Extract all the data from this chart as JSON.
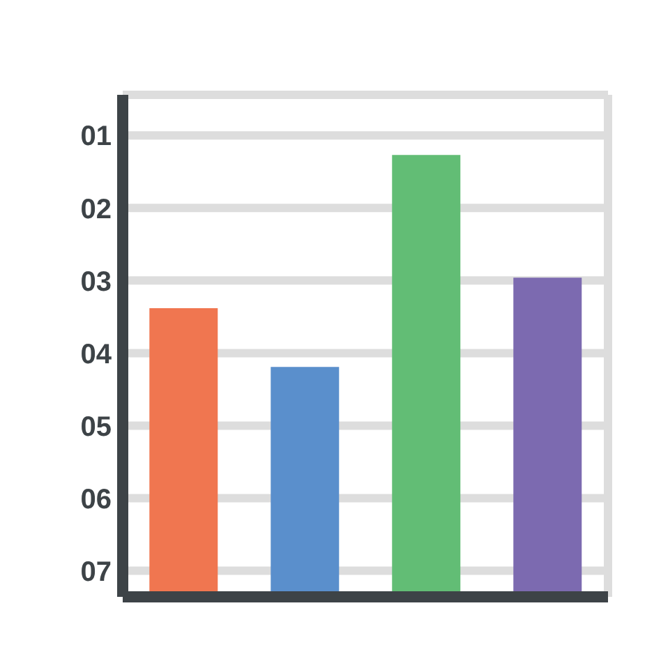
{
  "chart_data": {
    "type": "bar",
    "categories": [
      null,
      null,
      null,
      null
    ],
    "base": [
      7.36,
      7.36,
      7.36,
      7.36
    ],
    "values": [
      -3.98,
      -3.17,
      -6.09,
      -4.4
    ],
    "colors": [
      "#f07650",
      "#5a8fcc",
      "#62bd75",
      "#7c6ab0"
    ],
    "ylim": [
      7.36,
      0.44
    ],
    "yticks": [
      {
        "value": 1,
        "label": "01"
      },
      {
        "value": 2,
        "label": "02"
      },
      {
        "value": 3,
        "label": "03"
      },
      {
        "value": 4,
        "label": "04"
      },
      {
        "value": 5,
        "label": "05"
      },
      {
        "value": 6,
        "label": "06"
      },
      {
        "value": 7,
        "label": "07"
      }
    ],
    "grid": true
  }
}
